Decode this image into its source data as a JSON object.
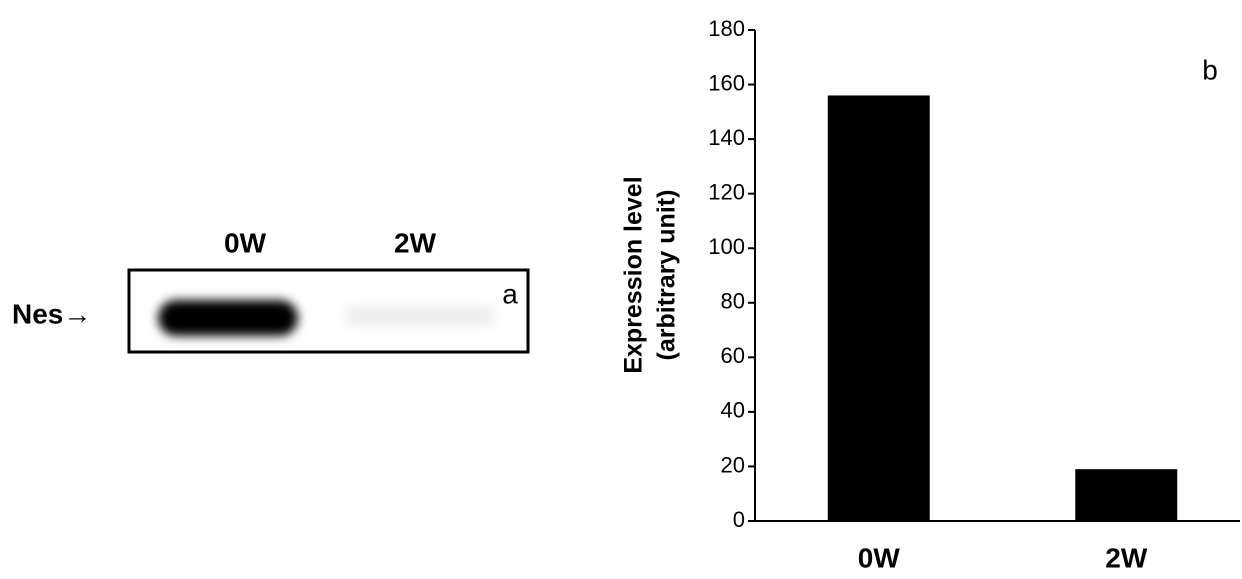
{
  "blot": {
    "lanes": [
      "0W",
      "2W"
    ],
    "band_label": "Nes→",
    "panel_label": "a"
  },
  "chart_data": {
    "type": "bar",
    "panel_label": "b",
    "ylabel": [
      "Expression level",
      "(arbitrary unit)"
    ],
    "categories": [
      "0W",
      "2W"
    ],
    "values": [
      156,
      19
    ],
    "color": "#000000",
    "ylim": [
      0,
      180
    ],
    "yticks": [
      0,
      20,
      40,
      60,
      80,
      100,
      120,
      140,
      160,
      180
    ],
    "grid": false
  }
}
